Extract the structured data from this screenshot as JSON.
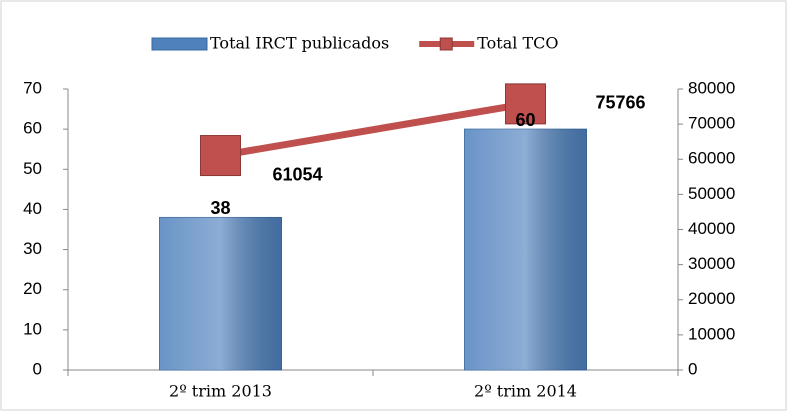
{
  "chart_data": {
    "type": "bar-line",
    "categories": [
      "2º trim 2013",
      "2º trim 2014"
    ],
    "series": [
      {
        "name": "Total IRCT publicados",
        "type": "bar",
        "color": "#4f81bd",
        "values": [
          38,
          60
        ]
      },
      {
        "name": "Total TCO",
        "type": "line",
        "axis": "y2",
        "color": "#c0504d",
        "values": [
          61054,
          75766
        ]
      }
    ],
    "ylim": [
      0,
      70
    ],
    "yticks": [
      0,
      10,
      20,
      30,
      40,
      50,
      60,
      70
    ],
    "y2lim": [
      0,
      80000
    ],
    "y2ticks": [
      0,
      10000,
      20000,
      30000,
      40000,
      50000,
      60000,
      70000,
      80000
    ],
    "legend": "top",
    "grid": false
  }
}
